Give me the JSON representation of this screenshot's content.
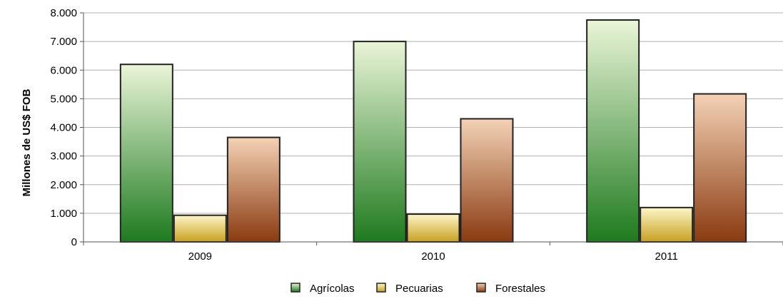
{
  "chart_data": {
    "type": "bar",
    "categories": [
      "2009",
      "2010",
      "2011"
    ],
    "series": [
      {
        "name": "Agrícolas",
        "values": [
          6200,
          7000,
          7750
        ]
      },
      {
        "name": "Pecuarias",
        "values": [
          930,
          970,
          1200
        ]
      },
      {
        "name": "Forestales",
        "values": [
          3650,
          4300,
          5170
        ]
      }
    ],
    "title": "",
    "xlabel": "",
    "ylabel": "Millones de US$ FOB",
    "ylim": [
      0,
      8000
    ],
    "yticks": [
      0,
      1000,
      2000,
      3000,
      4000,
      5000,
      6000,
      7000,
      8000
    ],
    "ytick_labels": [
      "0",
      "1.000",
      "2.000",
      "3.000",
      "4.000",
      "5.000",
      "6.000",
      "7.000",
      "8.000"
    ],
    "grid": true,
    "legend_position": "bottom",
    "colors": {
      "Agrícolas": {
        "light": "#eaf5d8",
        "dark": "#1e7a1e"
      },
      "Pecuarias": {
        "light": "#fdf6c8",
        "dark": "#c8a020"
      },
      "Forestales": {
        "light": "#f4d2b6",
        "dark": "#8a3a10"
      }
    }
  }
}
